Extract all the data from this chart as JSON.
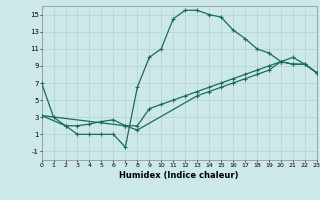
{
  "xlabel": "Humidex (Indice chaleur)",
  "bg_color": "#cce8e8",
  "grid_color": "#b8d4d4",
  "line_color": "#1a6b5a",
  "xlim": [
    0,
    23
  ],
  "ylim": [
    -2,
    16
  ],
  "xticks": [
    0,
    1,
    2,
    3,
    4,
    5,
    6,
    7,
    8,
    9,
    10,
    11,
    12,
    13,
    14,
    15,
    16,
    17,
    18,
    19,
    20,
    21,
    22,
    23
  ],
  "yticks": [
    -1,
    1,
    3,
    5,
    7,
    9,
    11,
    13,
    15
  ],
  "line1_x": [
    0,
    1,
    2,
    3,
    4,
    5,
    6,
    7,
    8,
    9,
    10,
    11,
    12,
    13,
    14,
    15,
    16,
    17,
    18,
    19,
    20,
    21,
    22,
    23
  ],
  "line1_y": [
    7,
    3,
    2,
    1,
    1,
    1,
    1,
    -0.5,
    6.5,
    10,
    11,
    14.5,
    15.5,
    15.5,
    15,
    14.7,
    13.2,
    12.2,
    11,
    10.5,
    9.5,
    9.2,
    9.2,
    8.2
  ],
  "line2_x": [
    0,
    2,
    3,
    4,
    5,
    6,
    7,
    8,
    9,
    10,
    11,
    12,
    13,
    14,
    15,
    16,
    17,
    18,
    19,
    20,
    21,
    22,
    23
  ],
  "line2_y": [
    3.2,
    2,
    2,
    2.2,
    2.5,
    2.7,
    2,
    2,
    4,
    4.5,
    5,
    5.5,
    6,
    6.5,
    7,
    7.5,
    8,
    8.5,
    9,
    9.5,
    10,
    9.2,
    8.2
  ],
  "line3_x": [
    0,
    7,
    8,
    13,
    14,
    15,
    16,
    17,
    18,
    19,
    20,
    21,
    22,
    23
  ],
  "line3_y": [
    3.2,
    2,
    1.5,
    5.5,
    6,
    6.5,
    7,
    7.5,
    8,
    8.5,
    9.5,
    9.2,
    9.2,
    8.2
  ]
}
